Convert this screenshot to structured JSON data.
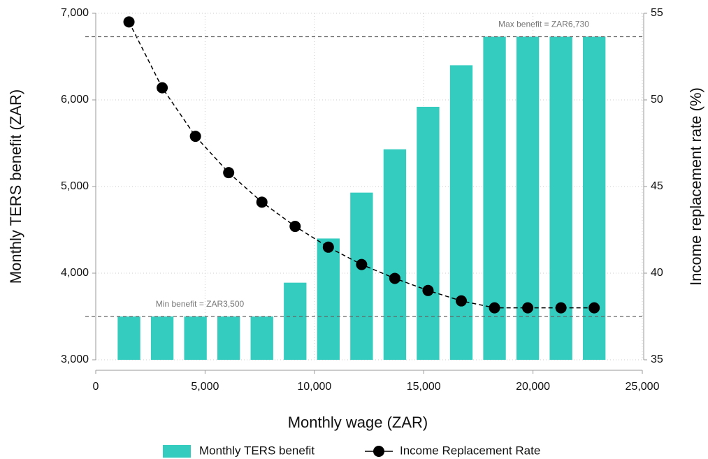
{
  "chart_data": {
    "type": "bar-line",
    "xlabel": "Monthly wage (ZAR)",
    "ylabel": "Monthly TERS benefit (ZAR)",
    "y2label": "Income replacement rate (%)",
    "x": [
      1520,
      3040,
      4560,
      6080,
      7600,
      9120,
      10640,
      12160,
      13680,
      15200,
      16720,
      18240,
      19760,
      21280,
      22800
    ],
    "series": [
      {
        "name": "Monthly TERS benefit",
        "type": "bar",
        "color": "#33ccbf",
        "values": [
          3500,
          3500,
          3500,
          3500,
          3500,
          3890,
          4400,
          4930,
          5430,
          5920,
          6400,
          6730,
          6730,
          6730,
          6730
        ]
      },
      {
        "name": "Income Replacement Rate",
        "type": "line",
        "axis": "y2",
        "color": "#000000",
        "values": [
          54.5,
          50.7,
          47.9,
          45.8,
          44.1,
          42.7,
          41.5,
          40.5,
          39.7,
          39.0,
          38.4,
          38.0,
          38.0,
          38.0,
          38.0
        ]
      }
    ],
    "hlines": [
      {
        "value": 6730,
        "label": "Max benefit = ZAR6,730"
      },
      {
        "value": 3500,
        "label": "Min benefit = ZAR3,500"
      }
    ],
    "xlim": [
      0,
      25000
    ],
    "xticks": [
      0,
      {
        "value": 5000,
        "label": "5,000"
      },
      {
        "value": 10000,
        "label": "10,000"
      },
      {
        "value": 15000,
        "label": "15,000"
      },
      {
        "value": 20000,
        "label": "20,000"
      },
      {
        "value": 25000,
        "label": "25,000"
      }
    ],
    "ylim": [
      3000,
      7000
    ],
    "yticks": [
      {
        "value": 3000,
        "label": "3,000"
      },
      {
        "value": 4000,
        "label": "4,000"
      },
      {
        "value": 5000,
        "label": "5,000"
      },
      {
        "value": 6000,
        "label": "6,000"
      },
      {
        "value": 7000,
        "label": "7,000"
      }
    ],
    "y2lim": [
      35,
      55
    ],
    "y2ticks": [
      35,
      40,
      45,
      50,
      55
    ],
    "grid": true,
    "legend": "bottom"
  }
}
